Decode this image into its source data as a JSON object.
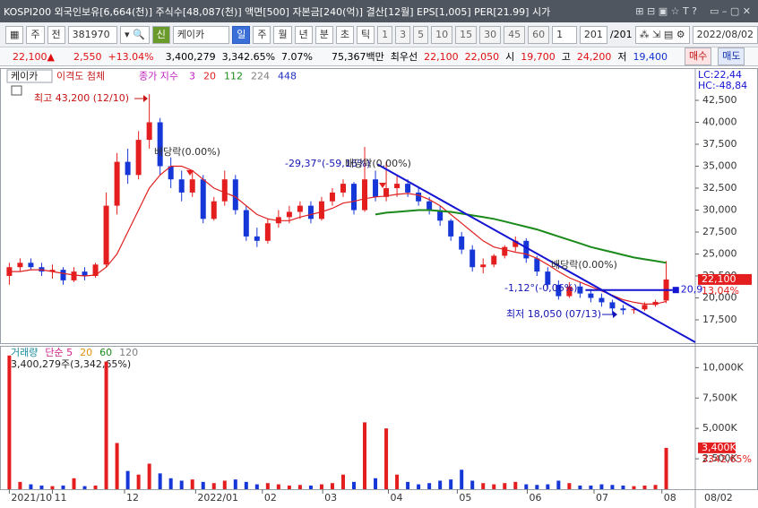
{
  "title_bar": {
    "info": "KOSPI200 외국인보유[6,664(천)] 주식수[48,087(천)] 액면[500] 자본금[240(억)] 결산[12월] EPS[1,005] PER[21.99] 시가"
  },
  "toolbar": {
    "selectors": [
      "주",
      "전"
    ],
    "code": "381970",
    "type_tag": "신",
    "name": "케이카",
    "periods": [
      "일",
      "주",
      "월",
      "년",
      "분",
      "초",
      "틱"
    ],
    "minutes": [
      "1",
      "3",
      "5",
      "10",
      "15",
      "30",
      "45",
      "60"
    ],
    "count": "1",
    "range": "201",
    "total": "/201",
    "date": "2022/08/02"
  },
  "quote_bar": {
    "price": "22,100▲",
    "change": "2,550",
    "rate": "+13.04%",
    "volume": "3,400,279",
    "volume_rate": "3,342.65%",
    "turnover": "7.07%",
    "amount": "75,367백만",
    "best_label": "최우선",
    "ask": "22,100",
    "bid": "22,050",
    "open_label": "시",
    "open": "19,700",
    "high_label": "고",
    "high": "24,200",
    "low_label": "저",
    "low": "19,400",
    "buy": "매수",
    "sell": "매도"
  },
  "chart_data": [
    {
      "type": "candlestick",
      "tabs": [
        "케이카",
        "이격도 첨체"
      ],
      "ma_label": "종가 지수",
      "lc_hc": [
        "LC:22,44",
        "HC:-48,84"
      ],
      "up_color": "#e41e1e",
      "down_color": "#1637d8",
      "xlim": [
        -0.2,
        63.7
      ],
      "ylim": [
        14950,
        44235
      ],
      "yticks": [
        {
          "value": 17500,
          "label": "17,500"
        },
        {
          "value": 20000,
          "label": "20,000"
        },
        {
          "value": 22500,
          "label": "22,500"
        },
        {
          "value": 25000,
          "label": "25,000"
        },
        {
          "value": 27500,
          "label": "27,500"
        },
        {
          "value": 30000,
          "label": "30,000"
        },
        {
          "value": 32500,
          "label": "32,500"
        },
        {
          "value": 35000,
          "label": "35,000"
        },
        {
          "value": 37500,
          "label": "37,500"
        },
        {
          "value": 40000,
          "label": "40,000"
        },
        {
          "value": 42500,
          "label": "42,500"
        }
      ],
      "values": [
        [
          22500,
          24000,
          21500,
          23500
        ],
        [
          23500,
          24500,
          23000,
          24000
        ],
        [
          24000,
          24500,
          23200,
          23500
        ],
        [
          23500,
          24000,
          22500,
          23000
        ],
        [
          23000,
          23800,
          22200,
          23200
        ],
        [
          23200,
          23500,
          21500,
          22000
        ],
        [
          22000,
          23500,
          21800,
          23000
        ],
        [
          23000,
          23500,
          22000,
          22500
        ],
        [
          22500,
          24000,
          22300,
          23800
        ],
        [
          23800,
          32000,
          23500,
          30500
        ],
        [
          30500,
          36500,
          29500,
          35500
        ],
        [
          35500,
          37000,
          33000,
          34000
        ],
        [
          34000,
          39000,
          33500,
          38000
        ],
        [
          38000,
          43200,
          37000,
          40000
        ],
        [
          40000,
          40500,
          34000,
          35000
        ],
        [
          35000,
          36000,
          32500,
          33500
        ],
        [
          33500,
          34500,
          31000,
          32000
        ],
        [
          32000,
          34500,
          31500,
          33500
        ],
        [
          33500,
          34000,
          28500,
          29000
        ],
        [
          29000,
          31500,
          28800,
          31000
        ],
        [
          31000,
          34500,
          30500,
          33500
        ],
        [
          33500,
          34000,
          29500,
          30000
        ],
        [
          30000,
          30500,
          26500,
          27000
        ],
        [
          27000,
          28000,
          25800,
          26500
        ],
        [
          26500,
          29000,
          26200,
          28500
        ],
        [
          28500,
          30000,
          28000,
          29200
        ],
        [
          29200,
          30500,
          28500,
          29800
        ],
        [
          29800,
          31000,
          29000,
          30500
        ],
        [
          30500,
          31000,
          28500,
          29000
        ],
        [
          29000,
          31500,
          28800,
          31000
        ],
        [
          31000,
          32500,
          30500,
          32000
        ],
        [
          32000,
          33500,
          31500,
          33000
        ],
        [
          33000,
          33200,
          29500,
          30000
        ],
        [
          30000,
          37200,
          29800,
          33500
        ],
        [
          33500,
          34500,
          31000,
          31500
        ],
        [
          31500,
          35500,
          31000,
          32500
        ],
        [
          32500,
          34000,
          31500,
          33000
        ],
        [
          33000,
          33500,
          31500,
          32000
        ],
        [
          32000,
          32500,
          30500,
          31000
        ],
        [
          31000,
          31500,
          29500,
          30000
        ],
        [
          30000,
          30500,
          28200,
          28800
        ],
        [
          28800,
          29000,
          26500,
          27000
        ],
        [
          27000,
          27500,
          25000,
          25500
        ],
        [
          25500,
          26000,
          23000,
          23500
        ],
        [
          23500,
          24500,
          22800,
          23800
        ],
        [
          23800,
          25000,
          23500,
          24800
        ],
        [
          24800,
          26000,
          24500,
          25800
        ],
        [
          25800,
          27000,
          25300,
          26500
        ],
        [
          26500,
          26800,
          24000,
          24500
        ],
        [
          24500,
          24800,
          22500,
          23000
        ],
        [
          23000,
          23500,
          21000,
          21500
        ],
        [
          21500,
          22000,
          19800,
          20200
        ],
        [
          20200,
          21800,
          20000,
          21300
        ],
        [
          21300,
          21800,
          20000,
          20500
        ],
        [
          20500,
          21000,
          19500,
          20000
        ],
        [
          20000,
          20500,
          19000,
          19500
        ],
        [
          19500,
          19800,
          18050,
          18800
        ],
        [
          18800,
          19200,
          18100,
          18600
        ],
        [
          18600,
          19000,
          18200,
          18700
        ],
        [
          18700,
          19500,
          18500,
          19200
        ],
        [
          19200,
          19800,
          19000,
          19550
        ],
        [
          19700,
          24200,
          19400,
          22100
        ]
      ],
      "series": [
        {
          "name": "3",
          "color": "#c020c0"
        },
        {
          "name": "20",
          "color": "#e02020",
          "values": [
            23000,
            23000,
            23200,
            23200,
            23000,
            22800,
            22600,
            22500,
            22600,
            23500,
            25000,
            27500,
            30000,
            32500,
            34000,
            35000,
            35000,
            34500,
            33500,
            32500,
            32000,
            31500,
            30500,
            29500,
            29000,
            28800,
            28800,
            29200,
            29500,
            29800,
            30200,
            30800,
            31000,
            31300,
            31500,
            31600,
            31800,
            31900,
            31700,
            31200,
            30500,
            29500,
            28500,
            27500,
            26500,
            25800,
            25500,
            25200,
            25000,
            24500,
            23800,
            23000,
            22300,
            21800,
            21300,
            20800,
            20300,
            19800,
            19500,
            19300,
            19300,
            19600
          ]
        },
        {
          "name": "112",
          "color": "#1a8a1a",
          "values": [
            null,
            null,
            null,
            null,
            null,
            null,
            null,
            null,
            null,
            null,
            null,
            null,
            null,
            null,
            null,
            null,
            null,
            null,
            null,
            null,
            null,
            null,
            null,
            null,
            null,
            null,
            null,
            null,
            null,
            null,
            null,
            null,
            null,
            null,
            29500,
            29700,
            29800,
            29900,
            30000,
            30000,
            29900,
            29800,
            29600,
            29400,
            29200,
            29000,
            28700,
            28400,
            28100,
            27800,
            27400,
            27000,
            26600,
            26200,
            25800,
            25500,
            25200,
            24900,
            24600,
            24400,
            24200,
            24000
          ]
        },
        {
          "name": "224",
          "color": "#808080"
        },
        {
          "name": "448",
          "color": "#2030c0"
        }
      ],
      "trend_line": {
        "color": "#1414d2",
        "x": [
          34.2,
          63.7
        ],
        "y": [
          35200,
          14950
        ]
      },
      "level_line": {
        "color": "#1414d2",
        "x": [
          53.5,
          61.6
        ],
        "value": 20900,
        "label": "20,9"
      },
      "annotations": [
        {
          "text": "최고 43,200 (12/10)",
          "color": "#c81414"
        },
        {
          "text": "배당락(0.00%)",
          "color": "#303030"
        },
        {
          "text": "-29,37°(-59,16%)",
          "color": "#1414b4"
        },
        {
          "text": "배당락(0.00%)",
          "color": "#303030"
        },
        {
          "text": "배당락(0.00%)",
          "color": "#303030"
        },
        {
          "text": "-1,12°(-0,06%)",
          "color": "#1414b4"
        },
        {
          "text": "최저 18,050 (07/13)",
          "color": "#1414b4"
        }
      ],
      "current_label": "22,100",
      "current_change": "13,04%"
    },
    {
      "type": "bar",
      "legend": [
        {
          "text": "거래량",
          "color": "#1a8a9a"
        },
        {
          "text": "단순 5",
          "color": "#d0208a"
        },
        {
          "text": "20",
          "color": "#e09010"
        },
        {
          "text": "60",
          "color": "#1a8a1a"
        },
        {
          "text": "120",
          "color": "#808080"
        }
      ],
      "info": "3,400,279주(3,342,65%)",
      "xlim": [
        -0.2,
        63.7
      ],
      "ylim": [
        0,
        11500
      ],
      "yticks": [
        {
          "value": 2500,
          "label": "2,500K"
        },
        {
          "value": 5000,
          "label": "5,000K"
        },
        {
          "value": 7500,
          "label": "7,500K"
        },
        {
          "value": 10000,
          "label": "10,000K"
        }
      ],
      "xticks": [
        {
          "value": 0,
          "label": "2021/10"
        },
        {
          "value": 4.0,
          "label": "11"
        },
        {
          "value": 10.7,
          "label": "12"
        },
        {
          "value": 17.3,
          "label": "2022/01"
        },
        {
          "value": 23.5,
          "label": "02"
        },
        {
          "value": 29.1,
          "label": "03"
        },
        {
          "value": 35.2,
          "label": "04"
        },
        {
          "value": 41.6,
          "label": "05"
        },
        {
          "value": 48.1,
          "label": "06"
        },
        {
          "value": 54.3,
          "label": "07"
        },
        {
          "value": 60.6,
          "label": "08"
        }
      ],
      "x_end_label": "08/02",
      "values": [
        11000,
        600,
        400,
        300,
        250,
        300,
        900,
        250,
        300,
        10500,
        3800,
        1500,
        1200,
        2100,
        1300,
        900,
        700,
        800,
        600,
        500,
        700,
        800,
        600,
        400,
        500,
        400,
        300,
        350,
        300,
        400,
        500,
        1200,
        600,
        5500,
        900,
        5000,
        1200,
        600,
        400,
        500,
        700,
        800,
        1600,
        700,
        500,
        400,
        500,
        600,
        400,
        350,
        400,
        700,
        500,
        300,
        300,
        400,
        350,
        300,
        250,
        300,
        350,
        3400
      ],
      "current_label": "3,400K",
      "current_change": "3342,65%"
    }
  ]
}
